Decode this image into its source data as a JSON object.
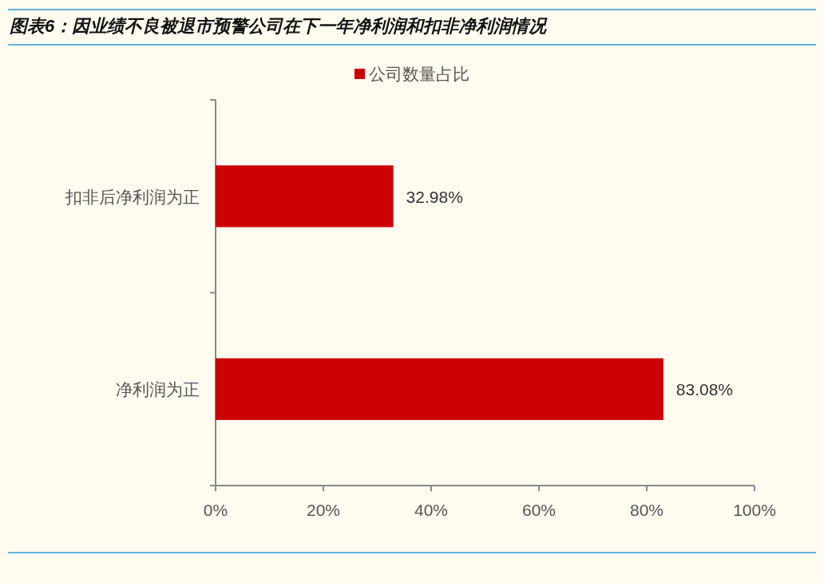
{
  "chart_data": {
    "type": "bar",
    "orientation": "horizontal",
    "title": "图表6：因业绩不良被退市预警公司在下一年净利润和扣非净利润情况",
    "categories": [
      "扣非后净利润为正",
      "净利润为正"
    ],
    "series": [
      {
        "name": "公司数量占比",
        "color": "#cc0000",
        "values": [
          32.98,
          83.08
        ],
        "value_labels": [
          "32.98%",
          "83.08%"
        ]
      }
    ],
    "xlim": [
      0,
      100
    ],
    "xticks": [
      {
        "value": 0,
        "label": "0%"
      },
      {
        "value": 20,
        "label": "20%"
      },
      {
        "value": 40,
        "label": "40%"
      },
      {
        "value": 60,
        "label": "60%"
      },
      {
        "value": 80,
        "label": "80%"
      },
      {
        "value": 100,
        "label": "100%"
      }
    ],
    "legend": "top",
    "grid": false
  }
}
